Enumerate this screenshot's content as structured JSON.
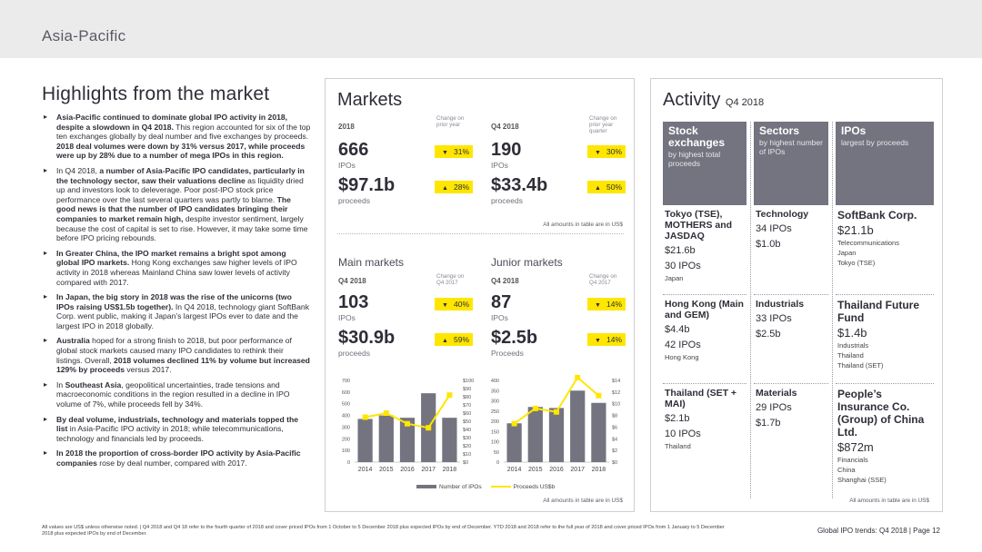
{
  "header": {
    "region": "Asia-Pacific"
  },
  "left": {
    "title": "Highlights from the market",
    "bullets": [
      [
        {
          "b": true,
          "t": "Asia-Pacific continued to dominate global IPO activity in 2018, despite a slowdown in Q4 2018."
        },
        {
          "b": false,
          "t": " This region accounted for six of the top ten exchanges globally by deal number and five exchanges by proceeds. "
        },
        {
          "b": true,
          "t": "2018 deal volumes were down by 31% versus 2017, while proceeds were up by 28% due to a number of mega IPOs in this region."
        }
      ],
      [
        {
          "b": false,
          "t": "In Q4 2018, "
        },
        {
          "b": true,
          "t": "a number of Asia-Pacific IPO candidates, particularly in the technology sector, saw their valuations decline"
        },
        {
          "b": false,
          "t": " as liquidity dried up and investors look to deleverage. Poor post-IPO stock price performance over the last several quarters was partly to blame. "
        },
        {
          "b": true,
          "t": "The good news is that the number of IPO candidates bringing their companies to market remain high,"
        },
        {
          "b": false,
          "t": " despite investor sentiment, largely because the cost of capital is set to rise. However, it may take some time before IPO pricing rebounds."
        }
      ],
      [
        {
          "b": true,
          "t": "In Greater China, the IPO market remains a bright spot among global IPO markets."
        },
        {
          "b": false,
          "t": " Hong Kong exchanges saw higher levels of IPO activity in 2018 whereas Mainland China saw lower levels of activity compared with 2017."
        }
      ],
      [
        {
          "b": true,
          "t": "In Japan, the big story in 2018 was the rise of the unicorns (two IPOs raising US$1.5b together)."
        },
        {
          "b": false,
          "t": " In Q4 2018, technology giant SoftBank Corp. went public, making it Japan’s largest IPOs ever to date and the largest IPO in 2018 globally."
        }
      ],
      [
        {
          "b": true,
          "t": "Australia"
        },
        {
          "b": false,
          "t": " hoped for a strong finish to 2018, but poor performance of global stock markets caused many IPO candidates to rethink their listings. Overall, "
        },
        {
          "b": true,
          "t": "2018 volumes declined 11% by volume but increased 129% by proceeds"
        },
        {
          "b": false,
          "t": " versus 2017."
        }
      ],
      [
        {
          "b": false,
          "t": "In "
        },
        {
          "b": true,
          "t": "Southeast Asia"
        },
        {
          "b": false,
          "t": ", geopolitical uncertainties, trade tensions and macroeconomic conditions in the region resulted in a decline in IPO volume of 7%, while proceeds fell by 34%."
        }
      ],
      [
        {
          "b": true,
          "t": "By deal volume, industrials, technology and materials topped the list"
        },
        {
          "b": false,
          "t": " in Asia-Pacific IPO activity in 2018; while telecommunications, technology and financials led by proceeds."
        }
      ],
      [
        {
          "b": true,
          "t": "In 2018 the proportion of cross-border IPO activity by Asia-Pacific companies"
        },
        {
          "b": false,
          "t": " rose by deal number, compared with 2017."
        }
      ]
    ]
  },
  "markets": {
    "title": "Markets",
    "col1": {
      "head": "2018",
      "change": "Change on prior year",
      "ipos": "666",
      "ipos_unit": "IPOs",
      "ipos_chg": "31%",
      "ipos_dir": "down",
      "proc": "$97.1b",
      "proc_unit": "proceeds",
      "proc_chg": "28%",
      "proc_dir": "up"
    },
    "col2": {
      "head": "Q4 2018",
      "change": "Change on prior year quarter",
      "ipos": "190",
      "ipos_unit": "IPOs",
      "ipos_chg": "30%",
      "ipos_dir": "down",
      "proc": "$33.4b",
      "proc_unit": "proceeds",
      "proc_chg": "50%",
      "proc_dir": "up"
    },
    "note1": "All amounts in table are in US$",
    "main": {
      "title": "Main markets",
      "head": "Q4 2018",
      "change": "Change on Q4 2017",
      "ipos": "103",
      "ipos_unit": "IPOs",
      "ipos_chg": "40%",
      "ipos_dir": "down",
      "proc": "$30.9b",
      "proc_unit": "proceeds",
      "proc_chg": "59%",
      "proc_dir": "up"
    },
    "junior": {
      "title": "Junior markets",
      "head": "Q4 2018",
      "change": "Change on Q4 2017",
      "ipos": "87",
      "ipos_unit": "IPOs",
      "ipos_chg": "14%",
      "ipos_dir": "down",
      "proc": "$2.5b",
      "proc_unit": "Proceeds",
      "proc_chg": "14%",
      "proc_dir": "down"
    },
    "legend": {
      "bars": "Number of IPOs",
      "line": "Proceeds US$b"
    },
    "note2": "All amounts in table are in US$"
  },
  "chart_data": [
    {
      "type": "bar",
      "title": "Main markets",
      "categories": [
        "2014",
        "2015",
        "2016",
        "2017",
        "2018"
      ],
      "series": [
        {
          "name": "Number of IPOs",
          "type": "bar",
          "axis": "left",
          "values": [
            370,
            400,
            380,
            590,
            380
          ]
        },
        {
          "name": "Proceeds US$b",
          "type": "line",
          "axis": "right",
          "values": [
            55,
            60,
            47,
            42,
            82
          ]
        }
      ],
      "ylim_left": [
        0,
        700
      ],
      "yticks_left": [
        "0",
        "100",
        "200",
        "300",
        "400",
        "500",
        "600",
        "700"
      ],
      "ylim_right": [
        0,
        100
      ],
      "yticks_right": [
        "$0",
        "$10",
        "$20",
        "$30",
        "$40",
        "$50",
        "$60",
        "$70",
        "$80",
        "$90",
        "$100"
      ],
      "colors": {
        "bars": "#747480",
        "line": "#ffe600"
      }
    },
    {
      "type": "bar",
      "title": "Junior markets",
      "categories": [
        "2014",
        "2015",
        "2016",
        "2017",
        "2018"
      ],
      "series": [
        {
          "name": "Number of IPOs",
          "type": "bar",
          "axis": "left",
          "values": [
            190,
            270,
            265,
            350,
            290
          ]
        },
        {
          "name": "Proceeds US$b",
          "type": "line",
          "axis": "right",
          "values": [
            6.6,
            9.2,
            8.6,
            14.5,
            11.4
          ]
        }
      ],
      "ylim_left": [
        0,
        400
      ],
      "yticks_left": [
        "0",
        "50",
        "100",
        "150",
        "200",
        "250",
        "300",
        "350",
        "400"
      ],
      "ylim_right": [
        0,
        14
      ],
      "yticks_right": [
        "$0",
        "$2",
        "$4",
        "$6",
        "$8",
        "$10",
        "$12",
        "$14"
      ],
      "colors": {
        "bars": "#747480",
        "line": "#ffe600"
      }
    }
  ],
  "activity": {
    "title": "Activity",
    "subtitle": "Q4 2018",
    "cols": [
      {
        "head": "Stock exchanges",
        "sub": "by highest total proceeds",
        "cells": [
          {
            "name": "Tokyo (TSE), MOTHERS and JASDAQ",
            "val": "$21.6b",
            "val2": "30 IPOs",
            "small": [
              "Japan"
            ]
          },
          {
            "name": "Hong Kong (Main and GEM)",
            "val": "$4.4b",
            "val2": "42 IPOs",
            "small": [
              "Hong Kong"
            ]
          },
          {
            "name": "Thailand (SET + MAI)",
            "val": "$2.1b",
            "val2": "10 IPOs",
            "small": [
              "Thailand"
            ]
          }
        ]
      },
      {
        "head": "Sectors",
        "sub": "by highest number of IPOs",
        "cells": [
          {
            "name": "Technology",
            "val": "34 IPOs",
            "val2": "$1.0b",
            "small": []
          },
          {
            "name": "Industrials",
            "val": "33 IPOs",
            "val2": "$2.5b",
            "small": []
          },
          {
            "name": "Materials",
            "val": "29 IPOs",
            "val2": "$1.7b",
            "small": []
          }
        ]
      },
      {
        "head": "IPOs",
        "sub": "largest by proceeds",
        "cells": [
          {
            "name": "SoftBank Corp.",
            "val": "$21.1b",
            "val2": "",
            "small": [
              "Telecommunications",
              "Japan",
              "Tokyo (TSE)"
            ]
          },
          {
            "name": "Thailand Future Fund",
            "val": "$1.4b",
            "val2": "",
            "small": [
              "Industrials",
              "Thailand",
              "Thailand (SET)"
            ]
          },
          {
            "name": "People’s Insurance Co. (Group) of China Ltd.",
            "val": "$872m",
            "val2": "",
            "small": [
              "Financials",
              "China",
              "Shanghai (SSE)"
            ]
          }
        ]
      }
    ],
    "note": "All amounts in table are in US$"
  },
  "footer": {
    "note": "All values are US$ unless otherwise noted. | Q4 2018 and Q4 18 refer to the fourth quarter of 2018 and cover priced IPOs from 1 October to 5 December 2018 plus expected IPOs by end of December. YTD 2018 and 2018 refer to the full year of 2018 and cover priced IPOs from 1 January to 5 December 2018 plus expected IPOs by end of December.",
    "page": "Global IPO trends: Q4 2018  |  Page 12"
  }
}
